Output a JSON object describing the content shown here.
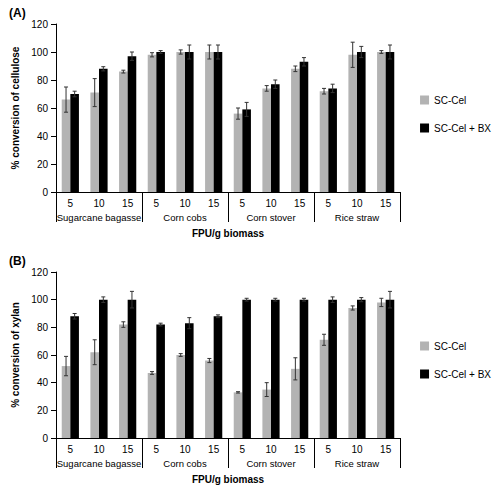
{
  "chart_data": [
    {
      "type": "bar",
      "title": "(A)",
      "x_label": "FPU/g biomass",
      "y_label": "% conversion of cellulose",
      "categories": [
        "5",
        "10",
        "15",
        "5",
        "10",
        "15",
        "5",
        "10",
        "15",
        "5",
        "10",
        "15"
      ],
      "groups": [
        "Sugarcane bagasse",
        "Corn cobs",
        "Corn stover",
        "Rice straw"
      ],
      "series": [
        {
          "name": "SC-Cel",
          "color": "#b3b3b3",
          "values": [
            66,
            71,
            86,
            98,
            100,
            100,
            56,
            74,
            88,
            72,
            98,
            100
          ],
          "errors": [
            9,
            10,
            1,
            1.5,
            1.5,
            5,
            4,
            2,
            2,
            2,
            9,
            1
          ]
        },
        {
          "name": "SC-Cel + BX",
          "color": "#000000",
          "values": [
            70,
            88,
            97,
            100,
            100,
            100,
            59,
            77,
            93,
            74,
            100,
            100
          ],
          "errors": [
            2,
            1.5,
            3,
            1,
            5,
            5,
            5,
            3,
            3,
            3,
            4,
            5
          ]
        }
      ],
      "ylim": [
        0,
        120
      ],
      "yticks": [
        0,
        20,
        40,
        60,
        80,
        100,
        120
      ],
      "grid": false,
      "legend": "right"
    },
    {
      "type": "bar",
      "title": "(B)",
      "x_label": "FPU/g biomass",
      "y_label": "% conversion of xylan",
      "categories": [
        "5",
        "10",
        "15",
        "5",
        "10",
        "15",
        "5",
        "10",
        "15",
        "5",
        "10",
        "15"
      ],
      "groups": [
        "Sugarcane bagasse",
        "Corn cobs",
        "Corn stover",
        "Rice straw"
      ],
      "series": [
        {
          "name": "SC-Cel",
          "color": "#b3b3b3",
          "values": [
            52,
            62,
            82,
            47,
            60,
            56,
            33,
            35,
            50,
            71,
            94,
            98
          ],
          "errors": [
            7,
            9,
            2,
            1,
            1,
            1.5,
            0.5,
            5,
            8,
            4,
            1.5,
            3
          ]
        },
        {
          "name": "SC-Cel + BX",
          "color": "#000000",
          "values": [
            88,
            100,
            100,
            82,
            83,
            88,
            100,
            100,
            100,
            100,
            100,
            100
          ],
          "errors": [
            2,
            2,
            6,
            1,
            4,
            1,
            1,
            1,
            1,
            2,
            1.5,
            6
          ]
        }
      ],
      "ylim": [
        0,
        120
      ],
      "yticks": [
        0,
        20,
        40,
        60,
        80,
        100,
        120
      ],
      "grid": false,
      "legend": "right"
    }
  ]
}
